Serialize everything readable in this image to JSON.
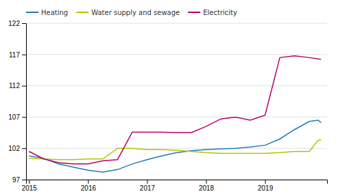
{
  "chart_data": {
    "type": "line",
    "x": [
      2015.0,
      2015.25,
      2015.5,
      2015.75,
      2016.0,
      2016.25,
      2016.5,
      2016.75,
      2017.0,
      2017.25,
      2017.5,
      2017.75,
      2018.0,
      2018.25,
      2018.5,
      2018.75,
      2019.0,
      2019.25,
      2019.5,
      2019.75,
      2019.9,
      2019.95
    ],
    "series": [
      {
        "name": "Heating",
        "color": "#1f7ab5",
        "values": [
          100.8,
          100.4,
          99.5,
          99.0,
          98.5,
          98.2,
          98.6,
          99.5,
          100.2,
          100.8,
          101.3,
          101.6,
          101.8,
          101.9,
          102.0,
          102.2,
          102.5,
          103.5,
          105.0,
          106.3,
          106.5,
          106.1
        ]
      },
      {
        "name": "Water supply and sewage",
        "color": "#b5c200",
        "values": [
          100.4,
          100.3,
          100.2,
          100.2,
          100.3,
          100.3,
          102.0,
          102.0,
          101.8,
          101.8,
          101.7,
          101.5,
          101.3,
          101.2,
          101.2,
          101.2,
          101.2,
          101.3,
          101.5,
          101.5,
          103.3,
          103.3
        ]
      },
      {
        "name": "Electricity",
        "color": "#b5006e",
        "values": [
          101.5,
          100.3,
          99.7,
          99.5,
          99.5,
          100.0,
          100.2,
          104.6,
          104.6,
          104.6,
          104.5,
          104.5,
          105.5,
          106.7,
          107.0,
          106.5,
          107.3,
          116.5,
          116.8,
          116.5,
          116.3,
          116.2
        ]
      }
    ],
    "xlim": [
      2014.95,
      2020.05
    ],
    "xticks": [
      2015,
      2016,
      2017,
      2018,
      2019
    ],
    "ylim": [
      97,
      122
    ],
    "yticks": [
      97,
      102,
      107,
      112,
      117,
      122
    ],
    "grid": true,
    "legend": "upper left"
  }
}
